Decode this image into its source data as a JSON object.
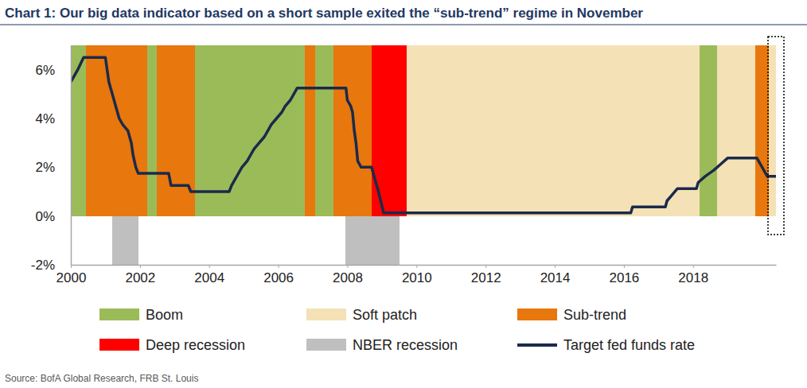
{
  "chart_data": {
    "type": "line",
    "title": "Chart 1: Our big data indicator based on a short sample exited the “sub-trend” regime in November",
    "source": "Source: BofA Global Research, FRB St. Louis",
    "xlim": [
      2000,
      2020.4
    ],
    "xticks": [
      2000,
      2002,
      2004,
      2006,
      2008,
      2010,
      2012,
      2014,
      2016,
      2018
    ],
    "ylim": [
      -2,
      7
    ],
    "yticks": [
      {
        "value": -2,
        "label": "-2%"
      },
      {
        "value": 0,
        "label": "0%"
      },
      {
        "value": 2,
        "label": "2%"
      },
      {
        "value": 4,
        "label": "4%"
      },
      {
        "value": 6,
        "label": "6%"
      }
    ],
    "grid": false,
    "legend": "bottom",
    "bands": [
      {
        "name": "Boom",
        "color": "#9bbb59",
        "y_range": [
          0,
          7
        ],
        "intervals": [
          [
            2000.0,
            2000.44
          ],
          [
            2002.2,
            2002.48
          ],
          [
            2003.6,
            2006.76
          ],
          [
            2007.08,
            2007.6
          ],
          [
            2018.18,
            2018.69
          ]
        ]
      },
      {
        "name": "Soft patch",
        "color": "#f4e1b6",
        "y_range": [
          0,
          7
        ],
        "intervals": [
          [
            2009.72,
            2018.18
          ],
          [
            2018.69,
            2019.79
          ],
          [
            2020.2,
            2020.4
          ]
        ]
      },
      {
        "name": "Sub-trend",
        "color": "#e8770e",
        "y_range": [
          0,
          7
        ],
        "intervals": [
          [
            2000.44,
            2002.2
          ],
          [
            2002.48,
            2003.6
          ],
          [
            2006.76,
            2007.08
          ],
          [
            2007.6,
            2008.71
          ],
          [
            2019.79,
            2020.2
          ]
        ]
      },
      {
        "name": "Deep recession",
        "color": "#ff0000",
        "y_range": [
          0,
          7
        ],
        "intervals": [
          [
            2008.71,
            2009.72
          ]
        ]
      },
      {
        "name": "NBER recession",
        "color": "#bfbfbf",
        "y_range": [
          -2,
          0
        ],
        "intervals": [
          [
            2001.2,
            2001.95
          ],
          [
            2007.95,
            2009.5
          ]
        ]
      }
    ],
    "x": [
      2000.0,
      2000.1,
      2000.2,
      2000.37,
      2001.0,
      2001.05,
      2001.1,
      2001.2,
      2001.3,
      2001.4,
      2001.5,
      2001.65,
      2001.75,
      2001.8,
      2001.88,
      2001.95,
      2002.83,
      2002.9,
      2003.4,
      2003.47,
      2004.58,
      2004.65,
      2004.75,
      2004.85,
      2004.95,
      2005.1,
      2005.2,
      2005.3,
      2005.45,
      2005.6,
      2005.7,
      2005.8,
      2005.95,
      2006.1,
      2006.2,
      2006.35,
      2006.45,
      2006.55,
      2007.96,
      2008.0,
      2008.1,
      2008.15,
      2008.2,
      2008.25,
      2008.3,
      2008.4,
      2008.7,
      2008.8,
      2008.9,
      2009.05,
      2016.2,
      2016.25,
      2017.2,
      2017.25,
      2017.4,
      2017.55,
      2018.1,
      2018.15,
      2018.35,
      2018.6,
      2018.8,
      2019.0,
      2019.85,
      2019.95,
      2020.05,
      2020.15,
      2020.4
    ],
    "series": [
      {
        "name": "Target fed funds rate",
        "color": "#1b2a4a",
        "type": "line",
        "line_style": "solid",
        "values": [
          5.5,
          5.75,
          6.0,
          6.5,
          6.5,
          6.0,
          5.5,
          5.0,
          4.5,
          4.0,
          3.75,
          3.5,
          3.0,
          2.5,
          2.0,
          1.75,
          1.75,
          1.25,
          1.25,
          1.0,
          1.0,
          1.25,
          1.5,
          1.75,
          2.0,
          2.25,
          2.5,
          2.75,
          3.0,
          3.25,
          3.5,
          3.75,
          4.0,
          4.25,
          4.5,
          4.75,
          5.0,
          5.25,
          5.25,
          4.75,
          4.5,
          4.25,
          3.5,
          3.0,
          2.25,
          2.0,
          2.0,
          1.5,
          1.0,
          0.125,
          0.125,
          0.375,
          0.375,
          0.625,
          0.875,
          1.125,
          1.125,
          1.375,
          1.625,
          1.875,
          2.125,
          2.375,
          2.375,
          2.125,
          1.875,
          1.625,
          1.625
        ]
      }
    ]
  }
}
